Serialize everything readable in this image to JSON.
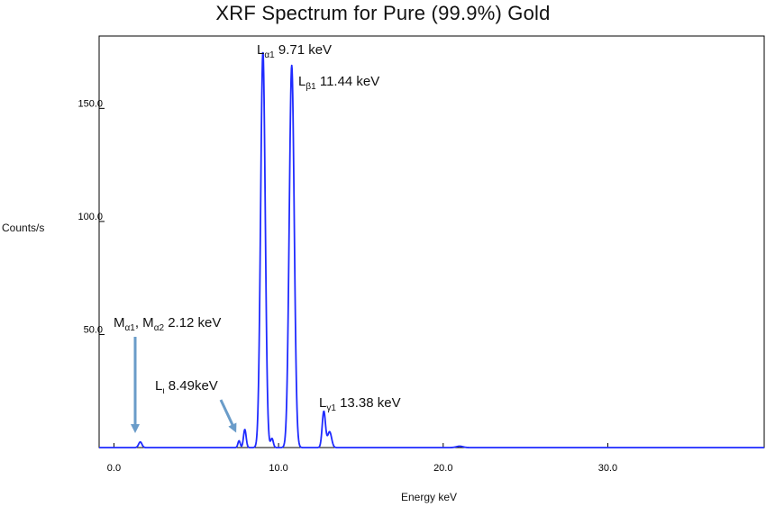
{
  "chart_data": {
    "type": "line",
    "title": "XRF Spectrum for Pure (99.9%) Gold",
    "xlabel": "Energy keV",
    "ylabel": "Counts/s",
    "xlim": [
      -0.9,
      39.5
    ],
    "ylim": [
      0,
      182
    ],
    "x_ticks": [
      0,
      10,
      20,
      30
    ],
    "x_tick_labels": [
      "0.0",
      "10.0",
      "20.0",
      "30.0"
    ],
    "y_ticks": [
      50,
      100,
      150
    ],
    "y_tick_labels": [
      "50.0",
      "100.0",
      "150.0"
    ],
    "grid": false,
    "line_color": "#1f2bff",
    "arrow_color": "#6a9cc9",
    "series": [
      {
        "peaks": [
          {
            "x": 1.6,
            "height": 2.5,
            "width": 0.1
          },
          {
            "x": 7.6,
            "height": 3.0,
            "width": 0.07
          },
          {
            "x": 7.95,
            "height": 8.0,
            "width": 0.08
          },
          {
            "x": 9.05,
            "height": 175.0,
            "width": 0.14
          },
          {
            "x": 9.6,
            "height": 4.0,
            "width": 0.08
          },
          {
            "x": 10.8,
            "height": 169.0,
            "width": 0.15
          },
          {
            "x": 12.75,
            "height": 16.0,
            "width": 0.1
          },
          {
            "x": 13.1,
            "height": 7.0,
            "width": 0.12
          },
          {
            "x": 21.0,
            "height": 0.6,
            "width": 0.2
          }
        ]
      }
    ],
    "annotations": [
      {
        "main": "L",
        "sub": "α1",
        "rest": " 9.71 keV"
      },
      {
        "main": "L",
        "sub": "β1",
        "rest": " 11.44 keV"
      },
      {
        "main": "M",
        "sub": "α1",
        "rest": ", M",
        "sub2": "α2",
        "rest2": " 2.12 keV"
      },
      {
        "main": "L",
        "sub": "ι",
        "rest": " 8.49keV"
      },
      {
        "main": "L",
        "sub": "γ1",
        "rest": " 13.38 keV"
      }
    ]
  }
}
